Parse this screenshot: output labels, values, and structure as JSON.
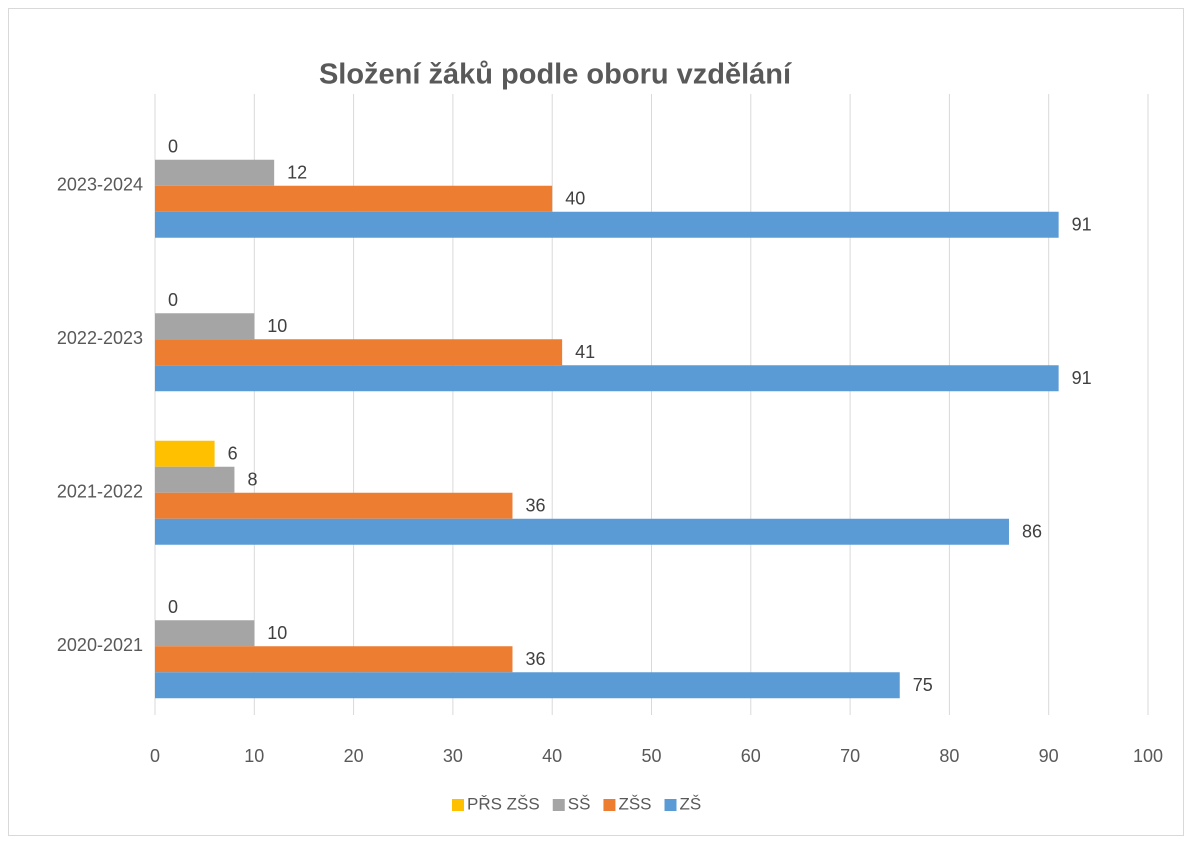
{
  "chart_data": {
    "type": "bar",
    "orientation": "horizontal",
    "title": "Složení žáků podle oboru vzdělání",
    "categories": [
      "2020-2021",
      "2021-2022",
      "2022-2023",
      "2023-2024"
    ],
    "series": [
      {
        "name": "PŘS ZŠS",
        "color": "#ffc000",
        "values": [
          0,
          6,
          0,
          0
        ]
      },
      {
        "name": "SŠ",
        "color": "#a5a5a5",
        "values": [
          10,
          8,
          10,
          12
        ]
      },
      {
        "name": "ZŠS",
        "color": "#ed7d31",
        "values": [
          36,
          36,
          41,
          40
        ]
      },
      {
        "name": "ZŠ",
        "color": "#5b9bd5",
        "values": [
          75,
          86,
          91,
          91
        ]
      }
    ],
    "xlim": [
      0,
      100
    ],
    "xticks": [
      0,
      10,
      20,
      30,
      40,
      50,
      60,
      70,
      80,
      90,
      100
    ],
    "grid": true,
    "legend": "bottom"
  }
}
